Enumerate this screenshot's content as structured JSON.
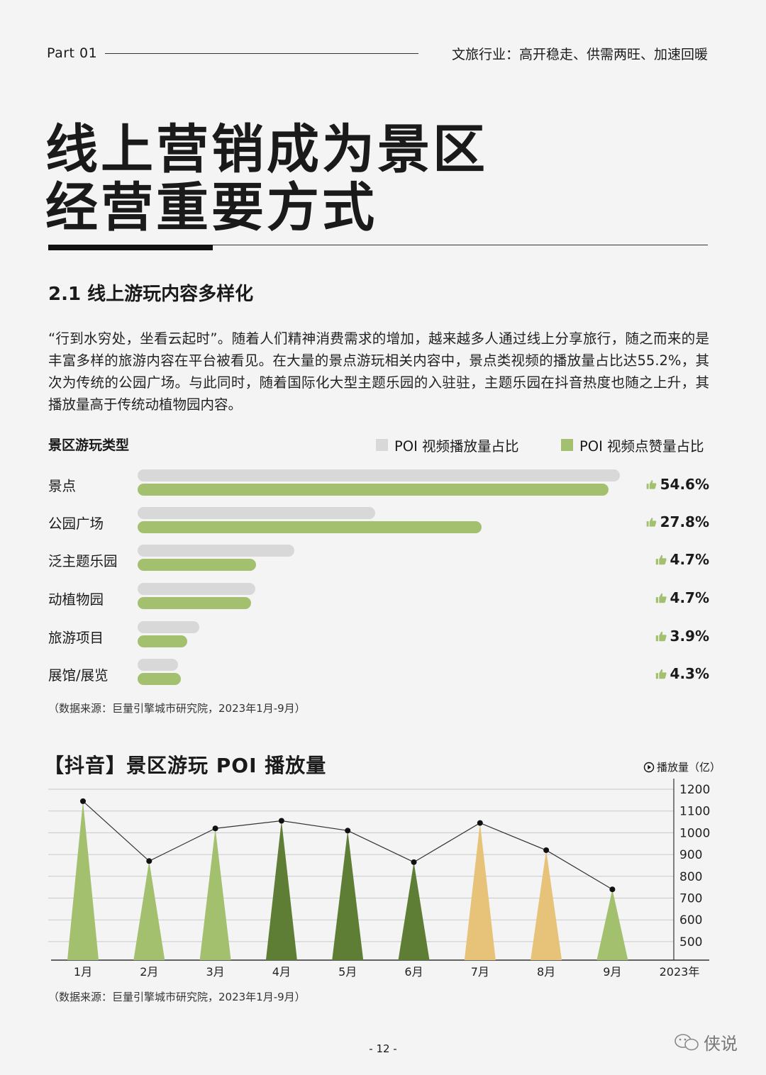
{
  "header": {
    "part": "Part  01",
    "subtitle": "文旅行业：高开稳走、供需两旺、加速回暖"
  },
  "title": {
    "line1": "线上营销成为景区",
    "line2": "经营重要方式"
  },
  "section": {
    "heading": "2.1 线上游玩内容多样化",
    "paragraph": "“行到水穷处，坐看云起时”。随着人们精神消费需求的增加，越来越多人通过线上分享旅行，随之而来的是丰富多样的旅游内容在平台被看见。在大量的景点游玩相关内容中，景点类视频的播放量占比达55.2%，其次为传统的公园广场。与此同时，随着国际化大型主题乐园的入驻驻，主题乐园在抖音热度也随之上升，其播放量高于传统动植物园内容。"
  },
  "bar_chart": {
    "title": "景区游玩类型",
    "legend_play": "POI 视频播放量占比",
    "legend_like": "POI 视频点赞量占比",
    "colors": {
      "play": "#d8d8d8",
      "like": "#a3c06e"
    },
    "source": "（数据来源：巨量引擎城市研究院，2023年1月-9月）"
  },
  "tri_chart": {
    "title": "【抖音】景区游玩 POI 播放量",
    "unit": "播放量（亿）",
    "year_label": "2023年",
    "source": "（数据来源：巨量引擎城市研究院，2023年1月-9月）"
  },
  "chart_data": [
    {
      "type": "bar",
      "title": "景区游玩类型",
      "categories": [
        "景点",
        "公园广场",
        "泛主题乐园",
        "动植物园",
        "旅游项目",
        "展馆/展览"
      ],
      "series": [
        {
          "name": "POI 视频播放量占比",
          "values": [
            55.2,
            27.2,
            17.9,
            13.5,
            7.1,
            4.6
          ]
        },
        {
          "name": "POI 视频点赞量占比",
          "values": [
            54.6,
            27.8,
            4.7,
            4.7,
            3.9,
            4.3
          ]
        }
      ],
      "labels": [
        "54.6%",
        "27.8%",
        "4.7%",
        "4.7%",
        "3.9%",
        "4.3%"
      ]
    },
    {
      "type": "line",
      "title": "【抖音】景区游玩 POI 播放量",
      "categories": [
        "1月",
        "2月",
        "3月",
        "4月",
        "5月",
        "6月",
        "7月",
        "8月",
        "9月"
      ],
      "values": [
        1145,
        870,
        1020,
        1055,
        1010,
        865,
        1045,
        920,
        740
      ],
      "bar_colors": [
        "#a3c06e",
        "#a3c06e",
        "#a3c06e",
        "#5f7e35",
        "#5f7e35",
        "#5f7e35",
        "#e6c378",
        "#e6c378",
        "#a3c06e"
      ],
      "ylabel": "播放量（亿）",
      "yticks": [
        500,
        600,
        700,
        800,
        900,
        1000,
        1100,
        1200
      ],
      "ylim": [
        410,
        1200
      ]
    }
  ],
  "page_number": "- 12 -",
  "watermark": "侠说"
}
